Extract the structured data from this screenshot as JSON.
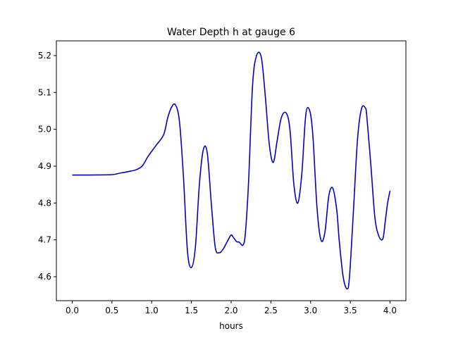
{
  "chart_data": {
    "type": "line",
    "title": "Water Depth h at gauge 6",
    "xlabel": "hours",
    "ylabel": "",
    "xlim": [
      -0.2,
      4.2
    ],
    "ylim": [
      4.535,
      5.24
    ],
    "xticks": [
      0.0,
      0.5,
      1.0,
      1.5,
      2.0,
      2.5,
      3.0,
      3.5,
      4.0
    ],
    "xtick_labels": [
      "0.0",
      "0.5",
      "1.0",
      "1.5",
      "2.0",
      "2.5",
      "3.0",
      "3.5",
      "4.0"
    ],
    "yticks": [
      4.6,
      4.7,
      4.8,
      4.9,
      5.0,
      5.1,
      5.2
    ],
    "ytick_labels": [
      "4.6",
      "4.7",
      "4.8",
      "4.9",
      "5.0",
      "5.1",
      "5.2"
    ],
    "grid": false,
    "legend": "none",
    "series": [
      {
        "color": "#0000cc",
        "x": [
          0.0,
          0.25,
          0.5,
          0.6,
          0.7,
          0.8,
          0.88,
          0.95,
          1.05,
          1.15,
          1.2,
          1.25,
          1.3,
          1.35,
          1.4,
          1.45,
          1.5,
          1.55,
          1.6,
          1.65,
          1.7,
          1.75,
          1.8,
          1.85,
          1.9,
          1.95,
          2.0,
          2.03,
          2.07,
          2.1,
          2.15,
          2.18,
          2.22,
          2.27,
          2.32,
          2.38,
          2.43,
          2.48,
          2.53,
          2.58,
          2.63,
          2.69,
          2.74,
          2.79,
          2.84,
          2.89,
          2.94,
          2.99,
          3.03,
          3.08,
          3.13,
          3.18,
          3.23,
          3.28,
          3.33,
          3.36,
          3.41,
          3.46,
          3.49,
          3.54,
          3.59,
          3.64,
          3.69,
          3.71,
          3.76,
          3.81,
          3.86,
          3.91,
          3.94,
          3.97,
          4.0
        ],
        "y": [
          4.876,
          4.876,
          4.877,
          4.881,
          4.885,
          4.89,
          4.9,
          4.925,
          4.955,
          4.985,
          5.03,
          5.06,
          5.066,
          5.02,
          4.87,
          4.67,
          4.625,
          4.68,
          4.85,
          4.945,
          4.935,
          4.8,
          4.68,
          4.665,
          4.675,
          4.695,
          4.713,
          4.706,
          4.695,
          4.694,
          4.686,
          4.72,
          4.86,
          5.12,
          5.2,
          5.195,
          5.09,
          4.96,
          4.91,
          4.97,
          5.03,
          5.045,
          5.0,
          4.85,
          4.8,
          4.88,
          5.04,
          5.05,
          4.98,
          4.79,
          4.7,
          4.72,
          4.82,
          4.84,
          4.78,
          4.7,
          4.6,
          4.567,
          4.6,
          4.78,
          4.97,
          5.055,
          5.058,
          5.03,
          4.9,
          4.76,
          4.71,
          4.703,
          4.75,
          4.8,
          4.833
        ]
      }
    ]
  }
}
